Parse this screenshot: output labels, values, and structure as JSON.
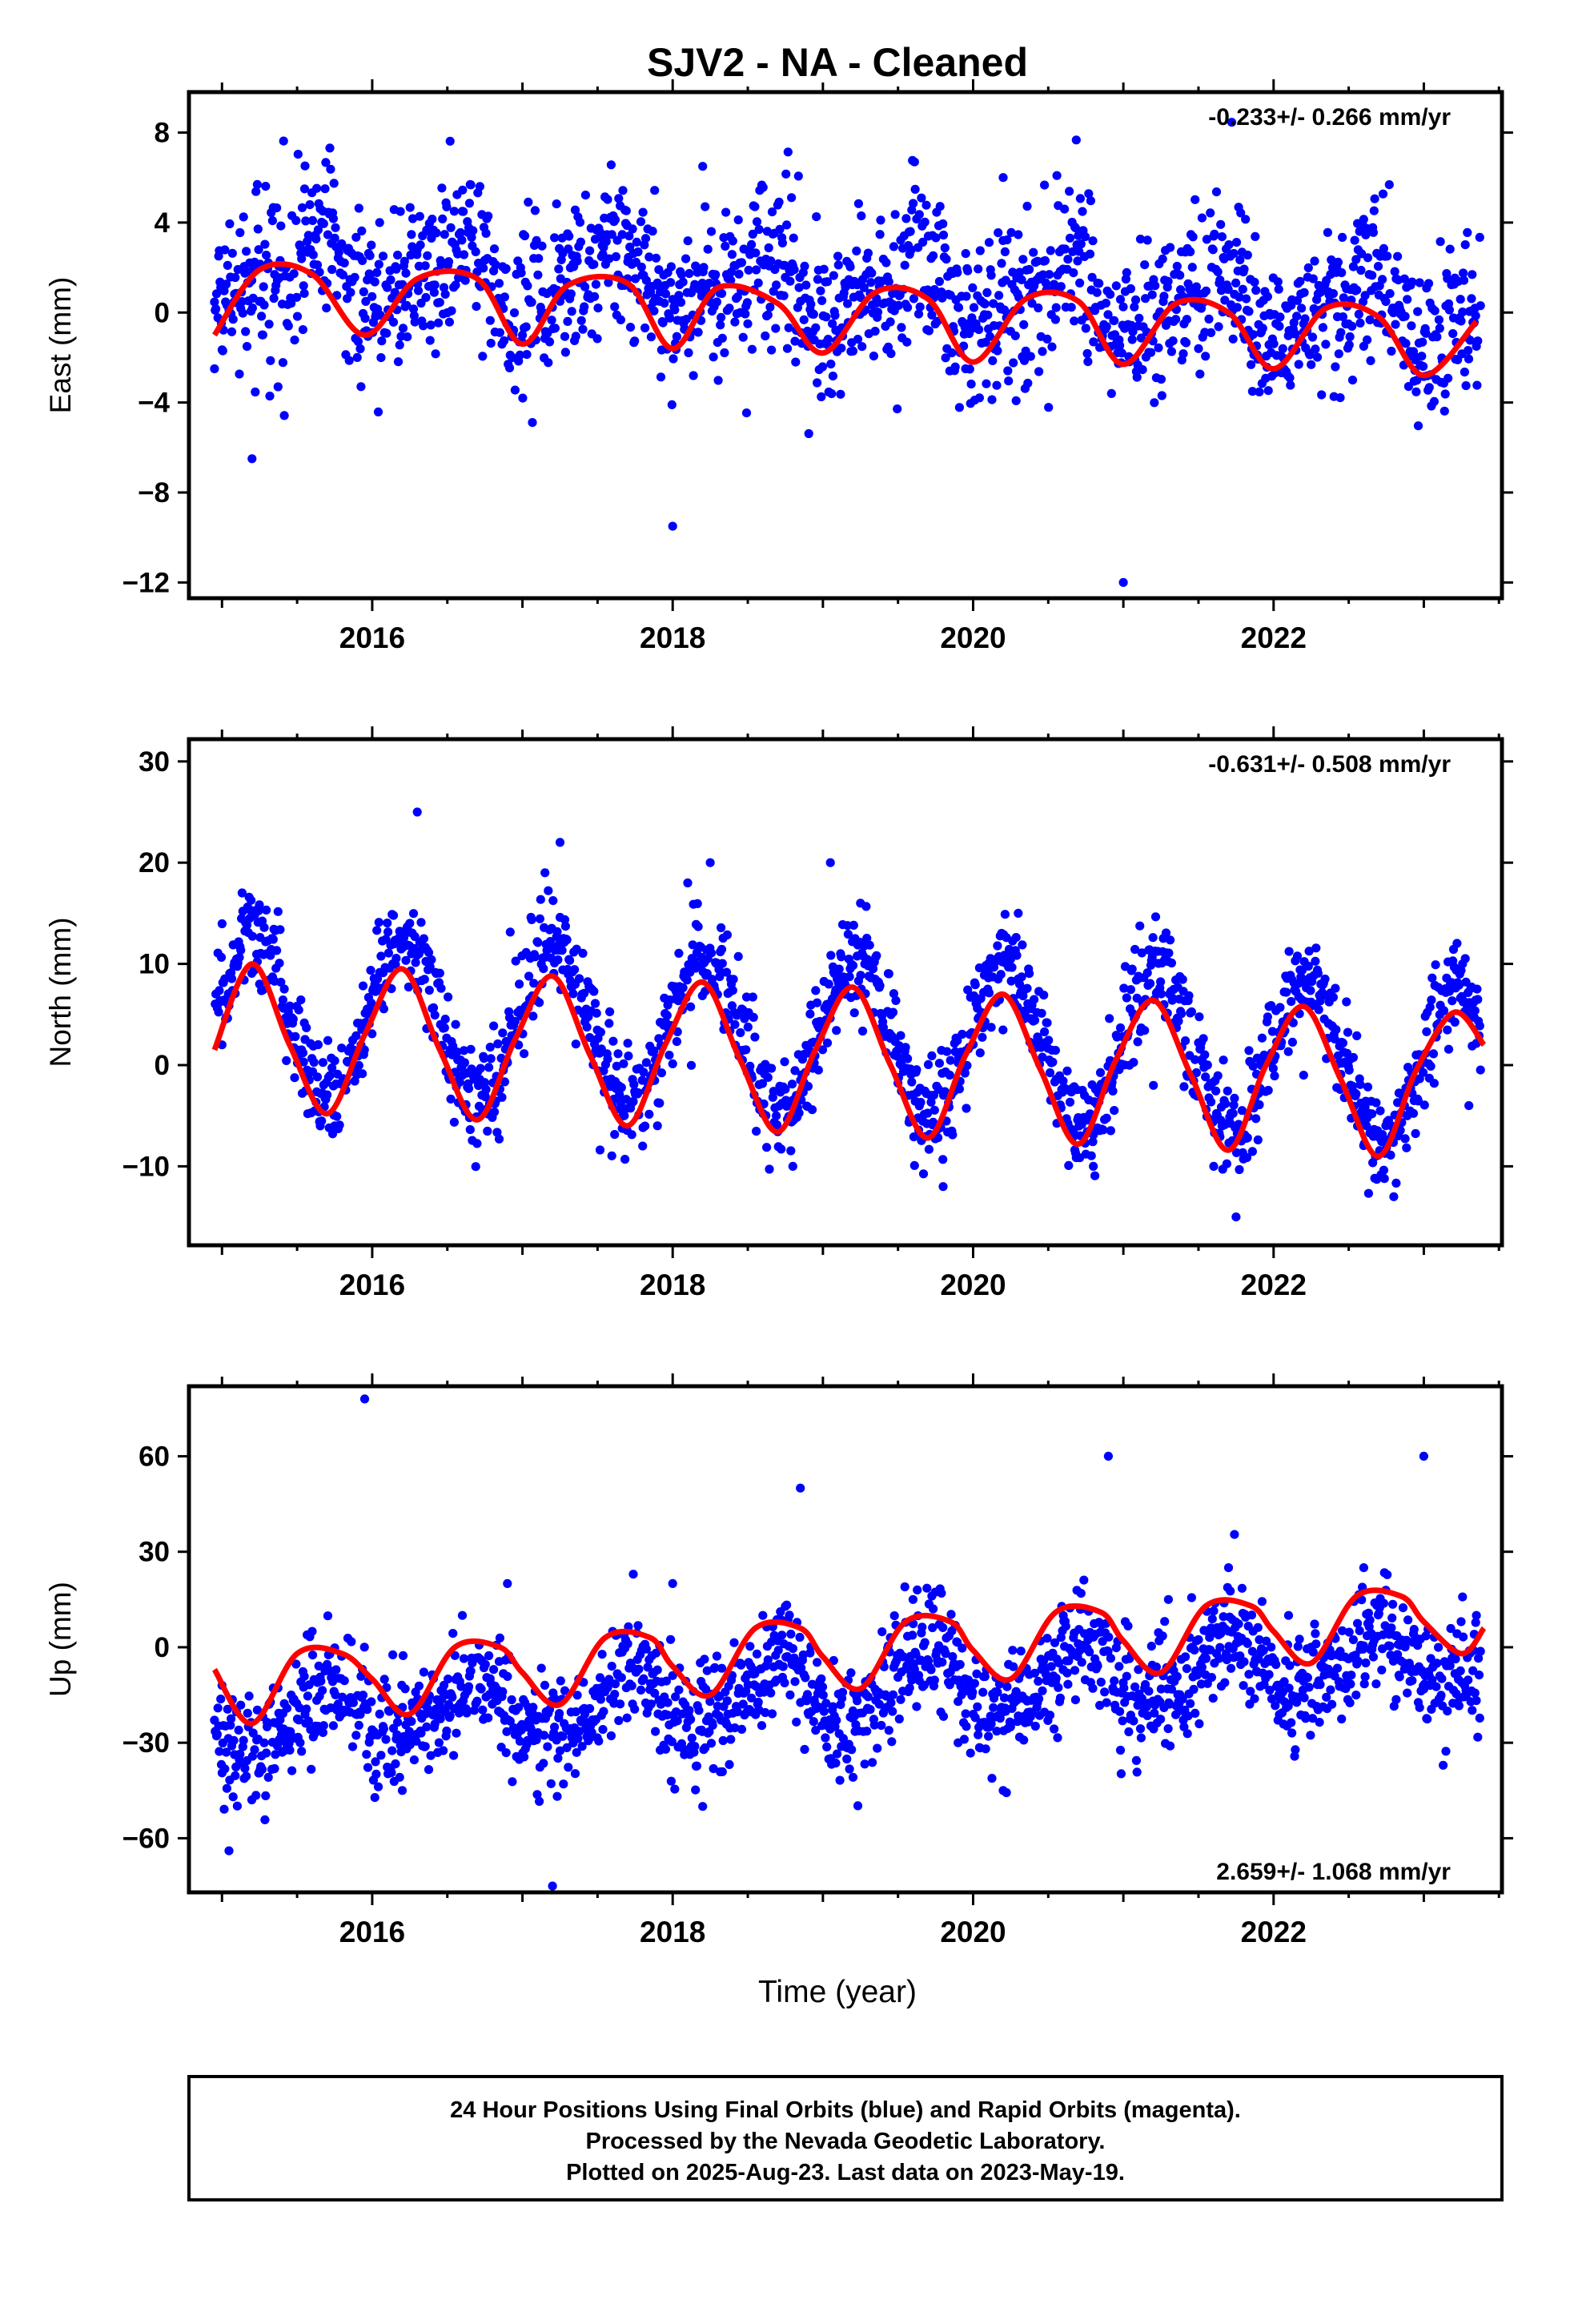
{
  "title": "SJV2  - NA - Cleaned",
  "xlabel": "Time (year)",
  "footer": {
    "line1": "24 Hour Positions Using Final Orbits (blue) and Rapid Orbits (magenta).",
    "line2": "Processed by the Nevada Geodetic Laboratory.",
    "line3": "Plotted on 2025-Aug-23. Last data on 2023-May-19."
  },
  "colors": {
    "points": "#0000ff",
    "fit": "#ff0000",
    "frame": "#000000"
  },
  "chart_data": [
    {
      "type": "scatter",
      "panel": "east",
      "ylabel": "East (mm)",
      "rate": "-0.233+/- 0.266 mm/yr",
      "rate_position": "top-right",
      "xlim": [
        2014.78,
        2023.52
      ],
      "ylim": [
        -12.7,
        9.8
      ],
      "x_ticks": [
        2016,
        2018,
        2020,
        2022
      ],
      "x_tick_labels": [
        "2016",
        "2018",
        "2020",
        "2022"
      ],
      "y_ticks": [
        8,
        4,
        0,
        -4,
        -8,
        -12
      ],
      "y_tick_labels": [
        "8",
        "4",
        "0",
        "−4",
        "−8",
        "−12"
      ],
      "model": {
        "offset": 1.0,
        "trend_mm_per_yr": -0.233,
        "annual_amp": 1.3,
        "annual_phase_peak_frac": 0.6,
        "semiannual_amp": 0.7,
        "semiannual_phase_peak_frac": 0.2,
        "scatter_sd": 1.8
      },
      "series": [
        {
          "role": "observed",
          "x": [
            2014.95,
            2015.2,
            2015.55,
            2015.9,
            2016.3,
            2016.6,
            2017.0,
            2017.3,
            2017.7,
            2018.0,
            2018.2,
            2018.5,
            2018.9,
            2019.1,
            2019.5,
            2019.95,
            2020.2,
            2020.5,
            2021.0,
            2021.4,
            2021.8,
            2022.2,
            2022.6,
            2022.95,
            2023.35
          ],
          "y": [
            -2.5,
            -6.5,
            5.5,
            -2.0,
            2.8,
            4.5,
            -1.0,
            3.5,
            1.5,
            -9.5,
            6.5,
            -0.5,
            -1.5,
            2.5,
            1.0,
            -2.5,
            6.0,
            1.0,
            -12.0,
            0.5,
            -1.0,
            -0.5,
            -1.5,
            -2.0,
            -1.5
          ]
        },
        {
          "role": "fit",
          "x": [
            2014.95,
            2015.25,
            2015.6,
            2015.95,
            2016.3,
            2016.7,
            2017.0,
            2017.3,
            2017.7,
            2018.0,
            2018.3,
            2018.7,
            2019.0,
            2019.35,
            2019.7,
            2020.0,
            2020.35,
            2020.7,
            2021.0,
            2021.35,
            2021.7,
            2022.0,
            2022.35,
            2022.7,
            2023.0,
            2023.35
          ],
          "y": [
            -1.0,
            1.9,
            1.7,
            -1.0,
            1.5,
            1.5,
            -1.4,
            1.2,
            1.3,
            -1.6,
            1.1,
            0.4,
            -1.8,
            0.9,
            0.6,
            -2.2,
            0.6,
            0.5,
            -2.3,
            0.4,
            0.0,
            -2.5,
            0.2,
            -0.2,
            -2.8,
            -0.4
          ]
        }
      ]
    },
    {
      "type": "scatter",
      "panel": "north",
      "ylabel": "North (mm)",
      "rate": "-0.631+/- 0.508 mm/yr",
      "rate_position": "top-right",
      "xlim": [
        2014.78,
        2023.52
      ],
      "ylim": [
        -17.8,
        32.2
      ],
      "x_ticks": [
        2016,
        2018,
        2020,
        2022
      ],
      "x_tick_labels": [
        "2016",
        "2018",
        "2020",
        "2022"
      ],
      "y_ticks": [
        30,
        20,
        10,
        0,
        -10
      ],
      "y_tick_labels": [
        "30",
        "20",
        "10",
        "0",
        "−10"
      ],
      "model": {
        "offset": 2.8,
        "trend_mm_per_yr": -0.631,
        "annual_amp": 7.6,
        "annual_phase_peak_frac": 0.22,
        "semiannual_amp": 0.0,
        "semiannual_phase_peak_frac": 0.0,
        "scatter_sd": 2.5
      },
      "series": [
        {
          "role": "observed",
          "x": [
            2015.0,
            2015.25,
            2015.75,
            2016.25,
            2016.3,
            2016.75,
            2017.15,
            2017.25,
            2017.8,
            2018.1,
            2018.25,
            2018.8,
            2019.05,
            2019.25,
            2019.8,
            2020.1,
            2020.3,
            2020.8,
            2021.2,
            2021.75,
            2022.2,
            2022.8,
            2023.3
          ],
          "y": [
            2.0,
            8.0,
            -6.0,
            14.0,
            25.0,
            -3.0,
            19.0,
            22.0,
            -8.0,
            18.0,
            20.0,
            -10.0,
            20.0,
            16.0,
            -12.0,
            10.0,
            15.0,
            -10.0,
            -2.0,
            -15.0,
            -1.0,
            -13.0,
            -4.0
          ]
        },
        {
          "role": "fit",
          "x": [
            2014.95,
            2015.2,
            2015.45,
            2015.7,
            2015.95,
            2016.2,
            2016.45,
            2016.7,
            2016.95,
            2017.2,
            2017.45,
            2017.7,
            2017.95,
            2018.2,
            2018.45,
            2018.7,
            2018.95,
            2019.2,
            2019.45,
            2019.7,
            2019.95,
            2020.2,
            2020.45,
            2020.7,
            2020.95,
            2021.2,
            2021.45,
            2021.7,
            2021.95,
            2022.2,
            2022.45,
            2022.7,
            2022.95,
            2023.2,
            2023.4
          ],
          "y": [
            1.5,
            10.0,
            2.0,
            -4.8,
            3.0,
            9.5,
            1.5,
            -5.4,
            2.5,
            8.8,
            1.0,
            -6.0,
            2.0,
            8.2,
            0.5,
            -6.6,
            1.5,
            7.7,
            0.0,
            -7.2,
            1.0,
            7.0,
            -0.5,
            -7.8,
            0.5,
            6.4,
            -1.0,
            -8.4,
            0.0,
            5.8,
            -1.5,
            -9.0,
            -0.5,
            5.2,
            2.0
          ]
        }
      ]
    },
    {
      "type": "scatter",
      "panel": "up",
      "ylabel": "Up (mm)",
      "rate": "2.659+/- 1.068 mm/yr",
      "rate_position": "bottom-right",
      "xlim": [
        2014.78,
        2023.52
      ],
      "ylim": [
        -77.0,
        82.0
      ],
      "x_ticks": [
        2016,
        2018,
        2020,
        2022
      ],
      "x_tick_labels": [
        "2016",
        "2018",
        "2020",
        "2022"
      ],
      "y_ticks": [
        60,
        30,
        0,
        -30,
        -60
      ],
      "y_tick_labels": [
        "60",
        "30",
        "0",
        "−30",
        "−60"
      ],
      "model": {
        "offset": -14.0,
        "trend_mm_per_yr": 2.659,
        "annual_amp": 9.5,
        "annual_phase_peak_frac": 0.7,
        "semiannual_amp": 2.5,
        "semiannual_phase_peak_frac": 0.25,
        "scatter_sd": 9.0
      },
      "series": [
        {
          "role": "observed",
          "x": [
            2015.0,
            2015.3,
            2015.6,
            2015.95,
            2016.2,
            2016.6,
            2016.9,
            2017.2,
            2017.6,
            2018.0,
            2018.2,
            2018.6,
            2018.85,
            2019.2,
            2019.6,
            2019.9,
            2020.2,
            2020.6,
            2020.9,
            2021.3,
            2021.7,
            2022.1,
            2022.6,
            2023.0,
            2023.35
          ],
          "y": [
            -12.0,
            -25.0,
            5.0,
            78.0,
            -45.0,
            10.0,
            20.0,
            -75.0,
            5.0,
            20.0,
            -50.0,
            10.0,
            50.0,
            -20.0,
            15.0,
            -30.0,
            -45.0,
            10.0,
            60.0,
            15.0,
            25.0,
            10.0,
            25.0,
            60.0,
            10.0
          ]
        },
        {
          "role": "fit",
          "x": [
            2014.95,
            2015.2,
            2015.5,
            2015.8,
            2016.0,
            2016.25,
            2016.55,
            2016.85,
            2017.0,
            2017.25,
            2017.55,
            2017.85,
            2018.0,
            2018.25,
            2018.55,
            2018.85,
            2019.0,
            2019.25,
            2019.55,
            2019.85,
            2020.0,
            2020.25,
            2020.55,
            2020.85,
            2021.0,
            2021.25,
            2021.55,
            2021.85,
            2022.0,
            2022.25,
            2022.55,
            2022.85,
            2023.0,
            2023.25,
            2023.4
          ],
          "y": [
            -7.0,
            -24.0,
            -2.0,
            -2.0,
            -10.0,
            -21.0,
            0.0,
            0.0,
            -8.0,
            -18.0,
            3.0,
            3.0,
            -6.0,
            -15.0,
            6.0,
            6.0,
            -3.0,
            -13.0,
            8.0,
            8.0,
            -1.0,
            -10.0,
            11.0,
            11.0,
            2.0,
            -8.0,
            13.0,
            13.0,
            5.0,
            -5.0,
            16.0,
            16.0,
            8.0,
            -2.0,
            6.0
          ]
        }
      ]
    }
  ]
}
